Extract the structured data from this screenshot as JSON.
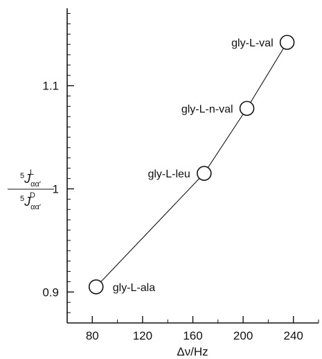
{
  "chart_data": {
    "type": "line",
    "xlabel": "Δν/Hz",
    "ylabel": {
      "numerator": {
        "sup": "5",
        "main": "J",
        "sub": "αα′",
        "superscript": "L"
      },
      "denominator": {
        "sup": "5",
        "main": "J",
        "sub": "αα′",
        "superscript": "D"
      }
    },
    "xlim": [
      60,
      260
    ],
    "ylim": [
      0.87,
      1.175
    ],
    "x_ticks": [
      80,
      120,
      160,
      200,
      240
    ],
    "x_tick_labels": [
      "80",
      "120",
      "160",
      "200",
      "240"
    ],
    "y_ticks": [
      0.9,
      1.0,
      1.1
    ],
    "y_tick_labels": [
      "0.9",
      "1",
      "1.1"
    ],
    "grid": false,
    "series": [
      {
        "points": [
          {
            "x": 83,
            "y": 0.905,
            "label": "gly-L-ala"
          },
          {
            "x": 169,
            "y": 1.015,
            "label": "gly-L-leu"
          },
          {
            "x": 203,
            "y": 1.078,
            "label": "gly-L-n-val"
          },
          {
            "x": 235,
            "y": 1.142,
            "label": "gly-L-val"
          }
        ]
      }
    ]
  }
}
